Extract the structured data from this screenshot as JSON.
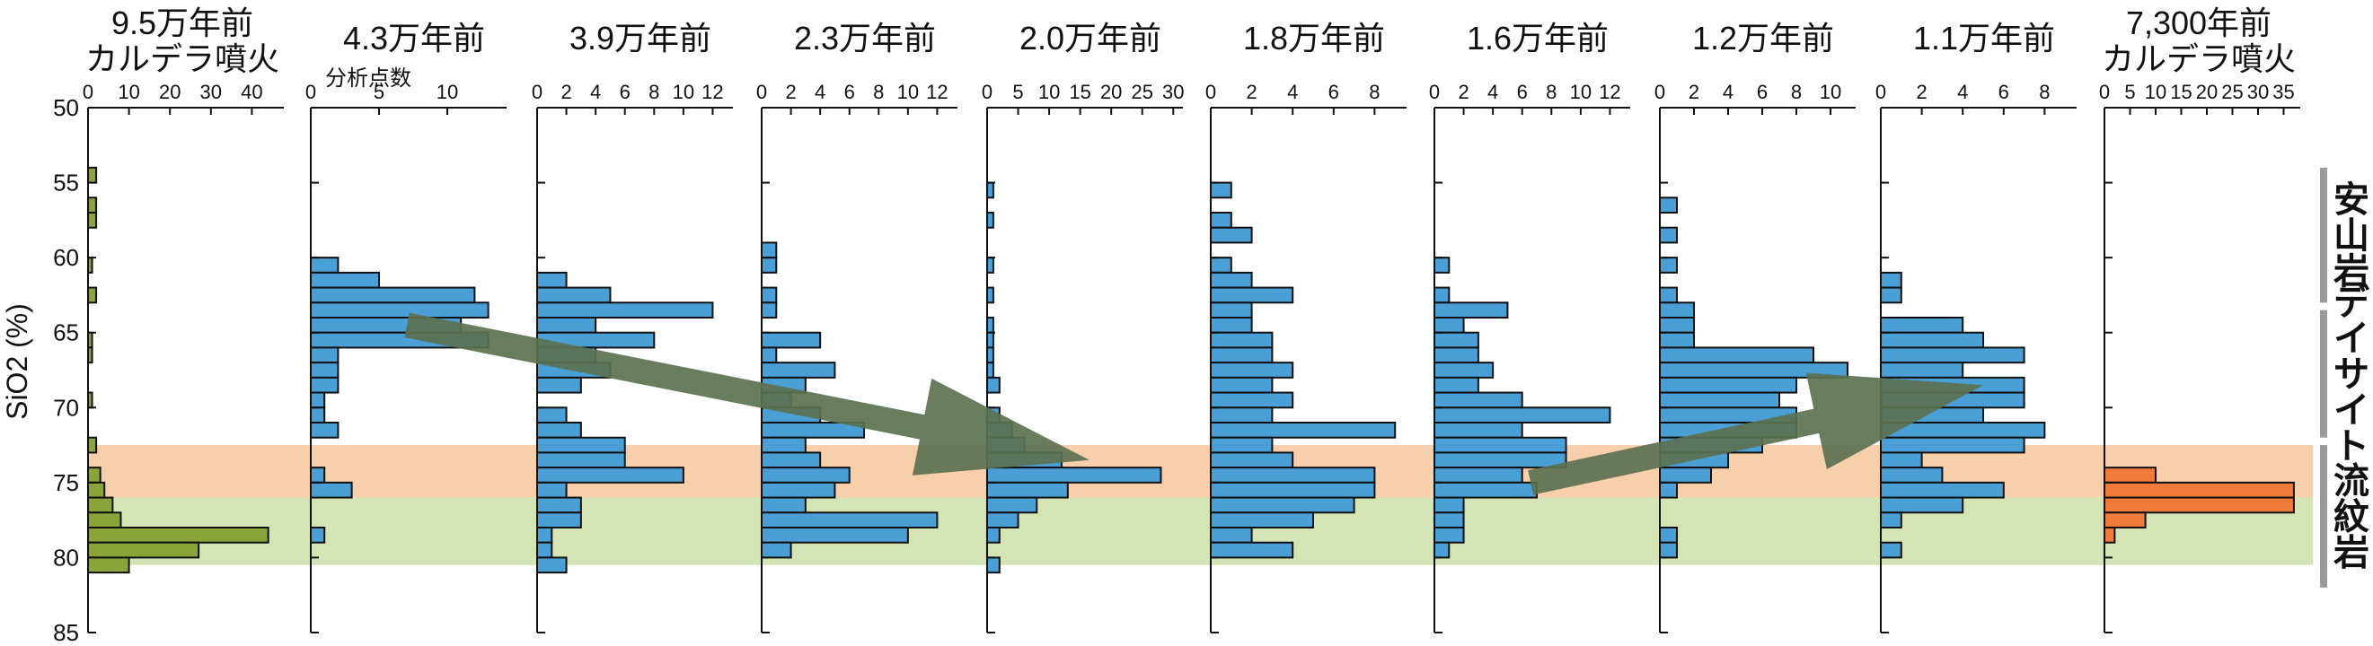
{
  "chart_data": {
    "type": "bar",
    "orientation": "horizontal",
    "ylabel": "SiO2 (%)",
    "ylim": [
      50,
      85
    ],
    "y_ticks": [
      50,
      55,
      60,
      65,
      70,
      75,
      80,
      85
    ],
    "y_tick_labels": [
      "50",
      "55",
      "60",
      "65",
      "70",
      "75",
      "80",
      "85"
    ],
    "bin_width": 1,
    "count_axis_label": "分析点数",
    "bands": [
      {
        "from": 72.5,
        "to": 76,
        "color": "#f8cfab"
      },
      {
        "from": 76,
        "to": 80.5,
        "color": "#d5e4b5"
      }
    ],
    "rock_types": [
      {
        "label": "安山岩",
        "from": 54,
        "to": 63
      },
      {
        "label": "デイサイト",
        "from": 63.5,
        "to": 72
      },
      {
        "label": "流紋岩",
        "from": 72.5,
        "to": 82
      }
    ],
    "bracket_color": "#9a9a9a",
    "arrow_color": "#5b7150",
    "arrows": [
      {
        "from_panel": 1,
        "from_sio2": 64.5,
        "to_panel": 4,
        "to_sio2": 73.5
      },
      {
        "from_panel": 6,
        "from_sio2": 75,
        "to_panel": 8,
        "to_sio2": 68.5
      }
    ],
    "panels": [
      {
        "title": [
          "9.5万年前",
          "カルデラ噴火"
        ],
        "color": "#8aa43a",
        "xmax": 50,
        "xticks": [
          0,
          10,
          20,
          30,
          40
        ],
        "xtick_labels": [
          "0",
          "10",
          "20",
          "30",
          "40"
        ],
        "bins": [
          [
            55,
            2
          ],
          [
            57,
            2
          ],
          [
            58,
            2
          ],
          [
            61,
            1
          ],
          [
            63,
            2
          ],
          [
            66,
            1
          ],
          [
            67,
            1
          ],
          [
            70,
            1
          ],
          [
            73,
            2
          ],
          [
            75,
            3
          ],
          [
            76,
            4
          ],
          [
            77,
            6
          ],
          [
            78,
            8
          ],
          [
            79,
            44
          ],
          [
            80,
            27
          ],
          [
            81,
            10
          ]
        ]
      },
      {
        "title": [
          "4.3万年前"
        ],
        "color": "#4a9fd6",
        "xmax": 15,
        "xticks": [
          0,
          5,
          10
        ],
        "xtick_labels": [
          "0",
          "5",
          "10"
        ],
        "bins": [
          [
            61,
            2
          ],
          [
            62,
            5
          ],
          [
            63,
            12
          ],
          [
            64,
            13
          ],
          [
            65,
            11
          ],
          [
            66,
            13
          ],
          [
            67,
            2
          ],
          [
            68,
            2
          ],
          [
            69,
            2
          ],
          [
            70,
            1
          ],
          [
            71,
            1
          ],
          [
            72,
            2
          ],
          [
            75,
            1
          ],
          [
            76,
            3
          ],
          [
            79,
            1
          ]
        ]
      },
      {
        "title": [
          "3.9万年前"
        ],
        "color": "#4a9fd6",
        "xmax": 14,
        "xticks": [
          0,
          2,
          4,
          6,
          8,
          10,
          12
        ],
        "xtick_labels": [
          "0",
          "2",
          "4",
          "6",
          "8",
          "10",
          "12"
        ],
        "bins": [
          [
            62,
            2
          ],
          [
            63,
            5
          ],
          [
            64,
            12
          ],
          [
            65,
            4
          ],
          [
            66,
            8
          ],
          [
            67,
            4
          ],
          [
            68,
            5
          ],
          [
            69,
            3
          ],
          [
            71,
            2
          ],
          [
            72,
            3
          ],
          [
            73,
            6
          ],
          [
            74,
            6
          ],
          [
            75,
            10
          ],
          [
            76,
            2
          ],
          [
            77,
            3
          ],
          [
            78,
            3
          ],
          [
            79,
            1
          ],
          [
            80,
            1
          ],
          [
            81,
            2
          ]
        ]
      },
      {
        "title": [
          "2.3万年前"
        ],
        "color": "#4a9fd6",
        "xmax": 14,
        "xticks": [
          0,
          2,
          4,
          6,
          8,
          10,
          12
        ],
        "xtick_labels": [
          "0",
          "2",
          "4",
          "6",
          "8",
          "10",
          "12"
        ],
        "bins": [
          [
            60,
            1
          ],
          [
            61,
            1
          ],
          [
            63,
            1
          ],
          [
            64,
            1
          ],
          [
            66,
            4
          ],
          [
            67,
            1
          ],
          [
            68,
            5
          ],
          [
            69,
            3
          ],
          [
            70,
            2
          ],
          [
            71,
            4
          ],
          [
            72,
            7
          ],
          [
            73,
            3
          ],
          [
            74,
            4
          ],
          [
            75,
            6
          ],
          [
            76,
            5
          ],
          [
            77,
            3
          ],
          [
            78,
            12
          ],
          [
            79,
            10
          ],
          [
            80,
            2
          ]
        ]
      },
      {
        "title": [
          "2.0万年前"
        ],
        "color": "#4a9fd6",
        "xmax": 33,
        "xticks": [
          0,
          5,
          10,
          15,
          20,
          25,
          30
        ],
        "xtick_labels": [
          "0",
          "5",
          "10",
          "15",
          "20",
          "25",
          "30"
        ],
        "bins": [
          [
            56,
            1
          ],
          [
            58,
            1
          ],
          [
            61,
            1
          ],
          [
            63,
            1
          ],
          [
            65,
            1
          ],
          [
            66,
            1
          ],
          [
            67,
            1
          ],
          [
            68,
            1
          ],
          [
            69,
            2
          ],
          [
            71,
            2
          ],
          [
            72,
            4
          ],
          [
            73,
            6
          ],
          [
            74,
            12
          ],
          [
            75,
            28
          ],
          [
            76,
            13
          ],
          [
            77,
            8
          ],
          [
            78,
            5
          ],
          [
            79,
            2
          ],
          [
            81,
            2
          ]
        ]
      },
      {
        "title": [
          "1.8万年前"
        ],
        "color": "#4a9fd6",
        "xmax": 10,
        "xticks": [
          0,
          2,
          4,
          6,
          8
        ],
        "xtick_labels": [
          "0",
          "2",
          "4",
          "6",
          "8"
        ],
        "bins": [
          [
            56,
            1
          ],
          [
            58,
            1
          ],
          [
            59,
            2
          ],
          [
            61,
            1
          ],
          [
            62,
            2
          ],
          [
            63,
            4
          ],
          [
            64,
            2
          ],
          [
            65,
            2
          ],
          [
            66,
            3
          ],
          [
            67,
            3
          ],
          [
            68,
            4
          ],
          [
            69,
            3
          ],
          [
            70,
            4
          ],
          [
            71,
            3
          ],
          [
            72,
            9
          ],
          [
            73,
            3
          ],
          [
            74,
            4
          ],
          [
            75,
            8
          ],
          [
            76,
            8
          ],
          [
            77,
            7
          ],
          [
            78,
            5
          ],
          [
            79,
            2
          ],
          [
            80,
            4
          ]
        ]
      },
      {
        "title": [
          "1.6万年前"
        ],
        "color": "#4a9fd6",
        "xmax": 14,
        "xticks": [
          0,
          2,
          4,
          6,
          8,
          10,
          12
        ],
        "xtick_labels": [
          "0",
          "2",
          "4",
          "6",
          "8",
          "10",
          "12"
        ],
        "bins": [
          [
            61,
            1
          ],
          [
            63,
            1
          ],
          [
            64,
            5
          ],
          [
            65,
            2
          ],
          [
            66,
            3
          ],
          [
            67,
            3
          ],
          [
            68,
            4
          ],
          [
            69,
            3
          ],
          [
            70,
            6
          ],
          [
            71,
            12
          ],
          [
            72,
            6
          ],
          [
            73,
            9
          ],
          [
            74,
            9
          ],
          [
            75,
            6
          ],
          [
            76,
            7
          ],
          [
            77,
            2
          ],
          [
            78,
            2
          ],
          [
            79,
            2
          ],
          [
            80,
            1
          ]
        ]
      },
      {
        "title": [
          "1.2万年前"
        ],
        "color": "#4a9fd6",
        "xmax": 12,
        "xticks": [
          0,
          2,
          4,
          6,
          8,
          10
        ],
        "xtick_labels": [
          "0",
          "2",
          "4",
          "6",
          "8",
          "10"
        ],
        "bins": [
          [
            57,
            1
          ],
          [
            59,
            1
          ],
          [
            61,
            1
          ],
          [
            63,
            1
          ],
          [
            64,
            2
          ],
          [
            65,
            2
          ],
          [
            66,
            2
          ],
          [
            67,
            9
          ],
          [
            68,
            11
          ],
          [
            69,
            8
          ],
          [
            70,
            7
          ],
          [
            71,
            8
          ],
          [
            72,
            8
          ],
          [
            73,
            6
          ],
          [
            74,
            4
          ],
          [
            75,
            3
          ],
          [
            76,
            1
          ],
          [
            79,
            1
          ],
          [
            80,
            1
          ]
        ]
      },
      {
        "title": [
          "1.1万年前"
        ],
        "color": "#4a9fd6",
        "xmax": 10,
        "xticks": [
          0,
          2,
          4,
          6,
          8
        ],
        "xtick_labels": [
          "0",
          "2",
          "4",
          "6",
          "8"
        ],
        "bins": [
          [
            62,
            1
          ],
          [
            63,
            1
          ],
          [
            65,
            4
          ],
          [
            66,
            5
          ],
          [
            67,
            7
          ],
          [
            68,
            4
          ],
          [
            69,
            7
          ],
          [
            70,
            7
          ],
          [
            71,
            5
          ],
          [
            72,
            8
          ],
          [
            73,
            7
          ],
          [
            74,
            2
          ],
          [
            75,
            3
          ],
          [
            76,
            6
          ],
          [
            77,
            4
          ],
          [
            78,
            1
          ],
          [
            80,
            1
          ]
        ]
      },
      {
        "title": [
          "7,300年前",
          "カルデラ噴火"
        ],
        "color": "#f07c3c",
        "xmax": 40,
        "xticks": [
          0,
          5,
          10,
          15,
          20,
          25,
          30,
          35
        ],
        "xtick_labels": [
          "0",
          "5",
          "10",
          "15",
          "20",
          "25",
          "30",
          "35"
        ],
        "bins": [
          [
            75,
            10
          ],
          [
            76,
            37
          ],
          [
            77,
            37
          ],
          [
            78,
            8
          ],
          [
            79,
            2
          ]
        ]
      }
    ]
  }
}
